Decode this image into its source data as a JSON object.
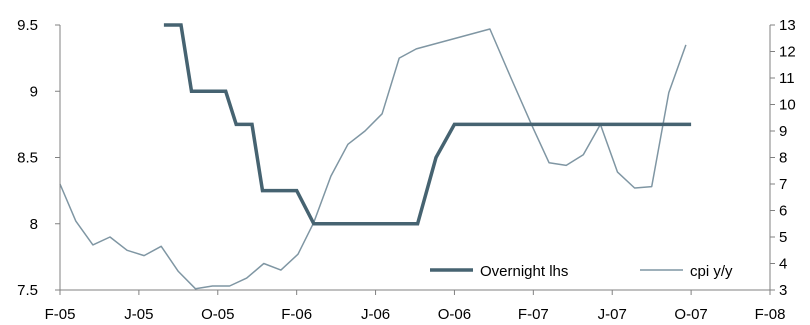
{
  "chart_data": {
    "type": "line",
    "title": "",
    "xlabel": "",
    "ylabel": "",
    "x_tick_labels": [
      "F-05",
      "J-05",
      "O-05",
      "F-06",
      "J-06",
      "O-06",
      "F-07",
      "J-07",
      "O-07",
      "F-08"
    ],
    "ylim_left": [
      7.5,
      9.5
    ],
    "left_ticks": [
      "7.5",
      "8",
      "8.5",
      "9",
      "9.5"
    ],
    "ylim_right": [
      3,
      13
    ],
    "right_ticks": [
      "3",
      "4",
      "5",
      "6",
      "7",
      "8",
      "9",
      "10",
      "11",
      "12",
      "13"
    ],
    "grid": false,
    "legend_position": "bottom-right",
    "series": [
      {
        "name": "Overnight lhs",
        "axis": "left",
        "color": "#466371",
        "values": [
          [
            3.95,
            9.5
          ],
          [
            4.6,
            9.5
          ],
          [
            5,
            9
          ],
          [
            6.3,
            9
          ],
          [
            6.7,
            8.75
          ],
          [
            7.3,
            8.75
          ],
          [
            7.7,
            8.25
          ],
          [
            9,
            8.25
          ],
          [
            9.65,
            8
          ],
          [
            13.6,
            8
          ],
          [
            14.3,
            8.5
          ],
          [
            15,
            8.75
          ],
          [
            24,
            8.75
          ]
        ]
      },
      {
        "name": "cpi y/y",
        "axis": "right",
        "color": "#7f96a3",
        "values": [
          [
            0,
            7
          ],
          [
            0.6,
            5.6
          ],
          [
            1.25,
            4.7
          ],
          [
            1.9,
            5
          ],
          [
            2.55,
            4.5
          ],
          [
            3.2,
            4.3
          ],
          [
            3.85,
            4.65
          ],
          [
            4.5,
            3.7
          ],
          [
            5.15,
            3.05
          ],
          [
            5.8,
            3.15
          ],
          [
            6.45,
            3.15
          ],
          [
            7.1,
            3.45
          ],
          [
            7.75,
            4
          ],
          [
            8.4,
            3.75
          ],
          [
            9.05,
            4.35
          ],
          [
            9.65,
            5.55
          ],
          [
            10.3,
            7.3
          ],
          [
            10.95,
            8.5
          ],
          [
            11.6,
            9
          ],
          [
            12.25,
            9.65
          ],
          [
            12.9,
            11.75
          ],
          [
            13.55,
            12.1
          ],
          [
            16.35,
            12.85
          ],
          [
            17.15,
            11
          ],
          [
            17.95,
            9.2
          ],
          [
            18.6,
            7.8
          ],
          [
            19.25,
            7.7
          ],
          [
            19.9,
            8.1
          ],
          [
            20.55,
            9.25
          ],
          [
            21.2,
            7.45
          ],
          [
            21.85,
            6.85
          ],
          [
            22.5,
            6.9
          ],
          [
            23.15,
            10.45
          ],
          [
            23.8,
            12.25
          ]
        ]
      }
    ]
  }
}
